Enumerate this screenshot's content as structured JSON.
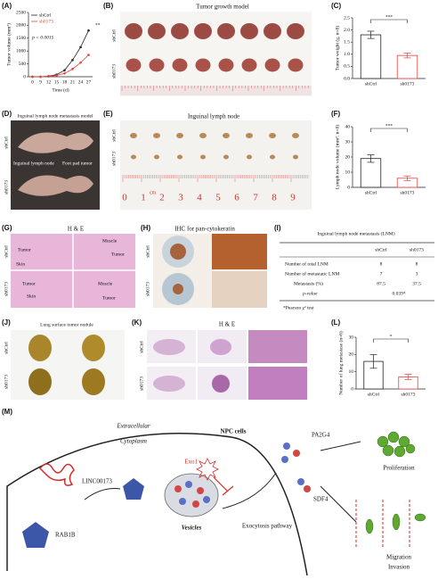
{
  "labels": [
    "(A)",
    "(B)",
    "(C)",
    "(D)",
    "(E)",
    "(F)",
    "(G)",
    "(H)",
    "(I)",
    "(J)",
    "(K)",
    "(L)",
    "(M)"
  ],
  "chart_data": [
    {
      "type": "line",
      "ylabel": "Tumor volume (mm³)",
      "xlabel": "Time (d)",
      "categories": [
        "0",
        "9",
        "12",
        "15",
        "18",
        "21",
        "24",
        "27"
      ],
      "series": [
        {
          "name": "shCtrl",
          "color": "#222222",
          "values": [
            0,
            0,
            20,
            80,
            250,
            650,
            1150,
            1800
          ]
        },
        {
          "name": "sh0173",
          "color": "#e8413c",
          "values": [
            0,
            0,
            15,
            50,
            130,
            300,
            550,
            850
          ]
        }
      ],
      "ylim": [
        0,
        2500
      ],
      "yticks": [
        0,
        500,
        1000,
        1500,
        2000,
        2500
      ],
      "annotations": [
        "p = 0.0015",
        "**"
      ]
    },
    {
      "type": "bar",
      "ylabel": "Tumor weight (g, n=8)",
      "categories": [
        "shCtrl",
        "sh0173"
      ],
      "values": [
        1.8,
        0.95
      ],
      "errors": [
        0.15,
        0.1
      ],
      "colors": [
        "#222222",
        "#e8413c"
      ],
      "ylim": [
        0,
        2.5
      ],
      "yticks": [
        {
          "value": 0,
          "label": "0.0"
        },
        0.5,
        {
          "value": 1,
          "label": "1.0"
        },
        1.5,
        {
          "value": 2,
          "label": "2.0"
        },
        2.5
      ],
      "annotation": "***"
    },
    {
      "type": "bar",
      "ylabel": "Lymph node volume (mm³, n=8)",
      "categories": [
        "shCtrl",
        "sh0173"
      ],
      "values": [
        19,
        6
      ],
      "errors": [
        2.5,
        1.5
      ],
      "colors": [
        "#222222",
        "#e8413c"
      ],
      "ylim": [
        0,
        40
      ],
      "yticks": [
        0,
        10,
        20,
        30,
        40
      ],
      "annotation": "***"
    },
    {
      "type": "bar",
      "ylabel": "Number of lung metastase (n=6)",
      "categories": [
        "shCtrl",
        "sh0173"
      ],
      "values": [
        16,
        7
      ],
      "errors": [
        4,
        1.5
      ],
      "colors": [
        "#222222",
        "#e8413c"
      ],
      "ylim": [
        0,
        30
      ],
      "yticks": [
        0,
        10,
        20,
        30
      ],
      "annotation": "*"
    }
  ],
  "B": {
    "title": "Tumor growth model",
    "rows": [
      "shCtrl",
      "sh0173"
    ]
  },
  "D": {
    "title": "Inguinal lymph node metastasis model",
    "rows": [
      "shCtrl",
      "sh0173"
    ],
    "notes": [
      "Inguinal lymph node",
      "Foot pad tumor"
    ]
  },
  "E": {
    "title": "Inguinal lymph node",
    "rows": [
      "shCtrl",
      "sh0173"
    ],
    "ruler": [
      "0",
      "1",
      "2",
      "3",
      "4",
      "5",
      "6",
      "7",
      "8",
      "9"
    ],
    "unit": "cm"
  },
  "G": {
    "title": "H & E",
    "rows": [
      "shCtrl",
      "sh0173"
    ],
    "notes": [
      "Tumor",
      "Skin",
      "Muscle",
      "Tumor",
      "Tumor",
      "Skin",
      "Muscle",
      "Tumor"
    ]
  },
  "H": {
    "title": "IHC for pan-cytokeratin",
    "rows": [
      "shCtrl",
      "sh0173"
    ]
  },
  "I": {
    "title": "Inguinal lymph node metastasis (LNM)",
    "header": [
      "shCtrl",
      "sh0173"
    ],
    "rows": [
      [
        "Number of total LNM",
        "8",
        "8"
      ],
      [
        "Number of metastatic LNM",
        "7",
        "3"
      ],
      [
        "Metastasis (%)",
        "87.5",
        "37.5"
      ],
      [
        "p-value",
        "0.039*"
      ]
    ],
    "footnote": "*Pearson χ² test"
  },
  "J": {
    "title": "Lung surface tumor nodule",
    "rows": [
      "shCtrl",
      "sh0173"
    ]
  },
  "K": {
    "title": "H & E",
    "rows": [
      "shCtrl",
      "sh0173"
    ]
  },
  "M": {
    "extracellular": "Extracellular",
    "cytoplasm": "Cytoplasm",
    "cell": "NPC cells",
    "lnc": "LINC00173",
    "rab": "RAB1B",
    "exo": "Exo1",
    "vesicles": "Vesicles",
    "pathway": "Exocytosis pathway",
    "pa2g4": "PA2G4",
    "sdf4": "SDF4",
    "proliferation": "Proliferation",
    "migration": "Migration",
    "invasion": "Invasion"
  }
}
